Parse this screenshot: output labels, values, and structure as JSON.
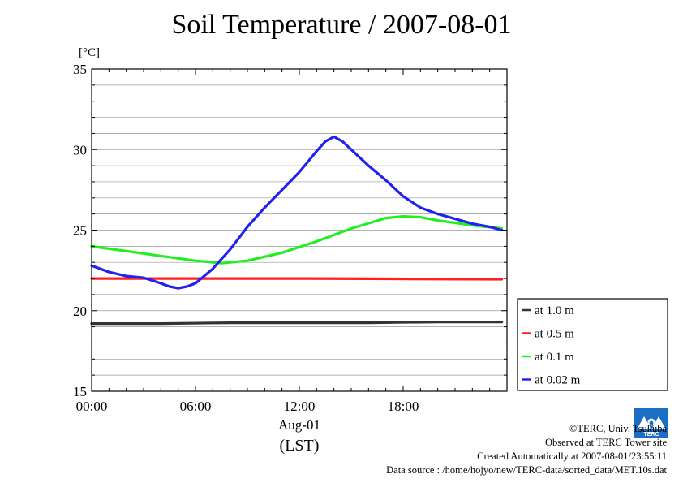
{
  "title": "Soil Temperature / 2007-08-01",
  "colors": {
    "at_1_0": "#333333",
    "at_0_5": "#ff2020",
    "at_0_1": "#22ee22",
    "at_0_02": "#2222ee",
    "grid": "#999999"
  },
  "chart_data": {
    "type": "line",
    "title": "Soil Temperature / 2007-08-01",
    "ylabel": "[°C]",
    "xlabel": "Aug-01",
    "xlabel2": "(LST)",
    "xlim": [
      0,
      24
    ],
    "ylim": [
      15,
      35
    ],
    "x_ticks": [
      "00:00",
      "06:00",
      "12:00",
      "18:00"
    ],
    "y_ticks": [
      "15",
      "20",
      "25",
      "30",
      "35"
    ],
    "grid": true,
    "legend_position": "right",
    "series": [
      {
        "name": "at 1.0 m",
        "color": "#333333",
        "x": [
          0,
          4,
          8,
          12,
          16,
          20,
          23.7
        ],
        "y": [
          19.2,
          19.2,
          19.25,
          19.25,
          19.25,
          19.3,
          19.3
        ]
      },
      {
        "name": "at 0.5 m",
        "color": "#ff2020",
        "x": [
          0,
          4,
          8,
          12,
          16,
          20,
          23.7
        ],
        "y": [
          22.0,
          22.0,
          22.0,
          22.0,
          21.98,
          21.96,
          21.95
        ]
      },
      {
        "name": "at 0.1 m",
        "color": "#22ee22",
        "x": [
          0,
          2,
          4,
          6,
          7.5,
          9,
          11,
          13,
          15,
          17,
          18,
          19,
          20,
          22,
          23.7
        ],
        "y": [
          24.0,
          23.7,
          23.4,
          23.1,
          22.95,
          23.1,
          23.6,
          24.3,
          25.1,
          25.75,
          25.85,
          25.8,
          25.6,
          25.3,
          25.1
        ]
      },
      {
        "name": "at 0.02 m",
        "color": "#2222ee",
        "x": [
          0,
          1,
          2,
          3,
          4,
          4.5,
          5,
          5.5,
          6,
          7,
          8,
          9,
          10,
          11,
          12,
          13,
          13.5,
          14,
          14.5,
          15,
          16,
          17,
          18,
          19,
          20,
          21,
          22,
          23,
          23.7
        ],
        "y": [
          22.8,
          22.4,
          22.15,
          22.05,
          21.7,
          21.5,
          21.4,
          21.5,
          21.7,
          22.6,
          23.8,
          25.2,
          26.4,
          27.5,
          28.6,
          29.9,
          30.5,
          30.8,
          30.5,
          30.0,
          29.0,
          28.1,
          27.1,
          26.4,
          26.0,
          25.7,
          25.4,
          25.2,
          25.0
        ]
      }
    ]
  },
  "footer": {
    "copyright": "©TERC, Univ. Tsukuba",
    "observed": "Observed at TERC Tower site",
    "created": "Created Automatically at 2007-08-01/23:55:11",
    "source": "Data source : /home/hojyo/new/TERC-data/sorted_data/MET.10s.dat"
  },
  "logo_text": "TERC"
}
